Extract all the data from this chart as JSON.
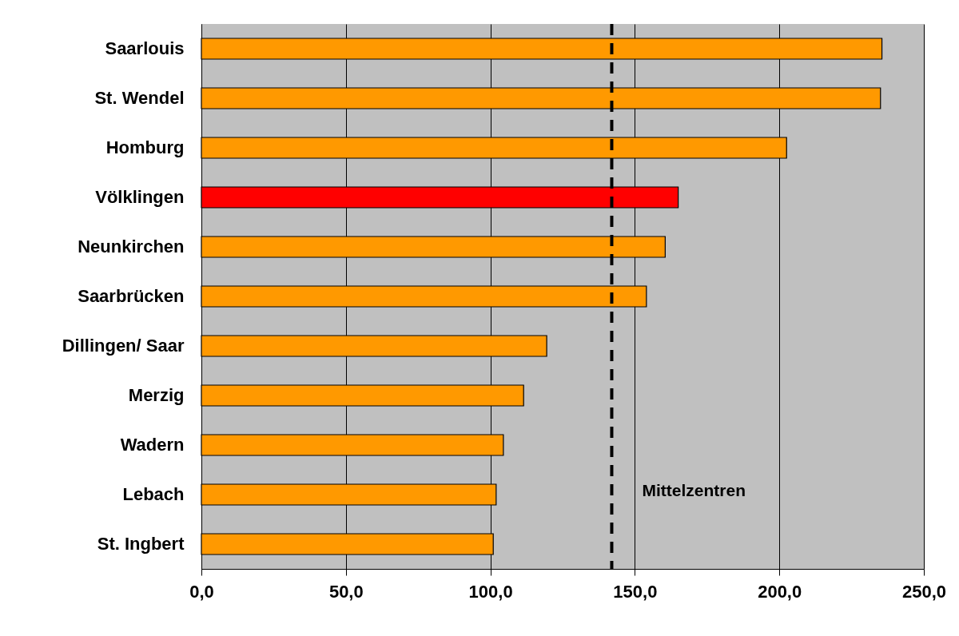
{
  "chart_data": {
    "type": "bar",
    "orientation": "horizontal",
    "categories": [
      "Saarlouis",
      "St. Wendel",
      "Homburg",
      "Völklingen",
      "Neunkirchen",
      "Saarbrücken",
      "Dillingen/ Saar",
      "Merzig",
      "Wadern",
      "Lebach",
      "St. Ingbert"
    ],
    "values": [
      235.5,
      235,
      202.5,
      165,
      160.5,
      154,
      119.5,
      111.5,
      104.5,
      102,
      101
    ],
    "colors": [
      "#ff9900",
      "#ff9900",
      "#ff9900",
      "#ff0000",
      "#ff9900",
      "#ff9900",
      "#ff9900",
      "#ff9900",
      "#ff9900",
      "#ff9900",
      "#ff9900"
    ],
    "xlim": [
      0,
      250
    ],
    "xticks": [
      {
        "value": 0,
        "label": "0,0"
      },
      {
        "value": 50,
        "label": "50,0"
      },
      {
        "value": 100,
        "label": "100,0"
      },
      {
        "value": 150,
        "label": "150,0"
      },
      {
        "value": 200,
        "label": "200,0"
      },
      {
        "value": 250,
        "label": "250,0"
      }
    ],
    "grid": "x",
    "ref_lines": [
      {
        "axis": "x",
        "value": 142,
        "label": "Mittelzentren",
        "line_style": "dashed",
        "color": "#000000"
      }
    ]
  }
}
